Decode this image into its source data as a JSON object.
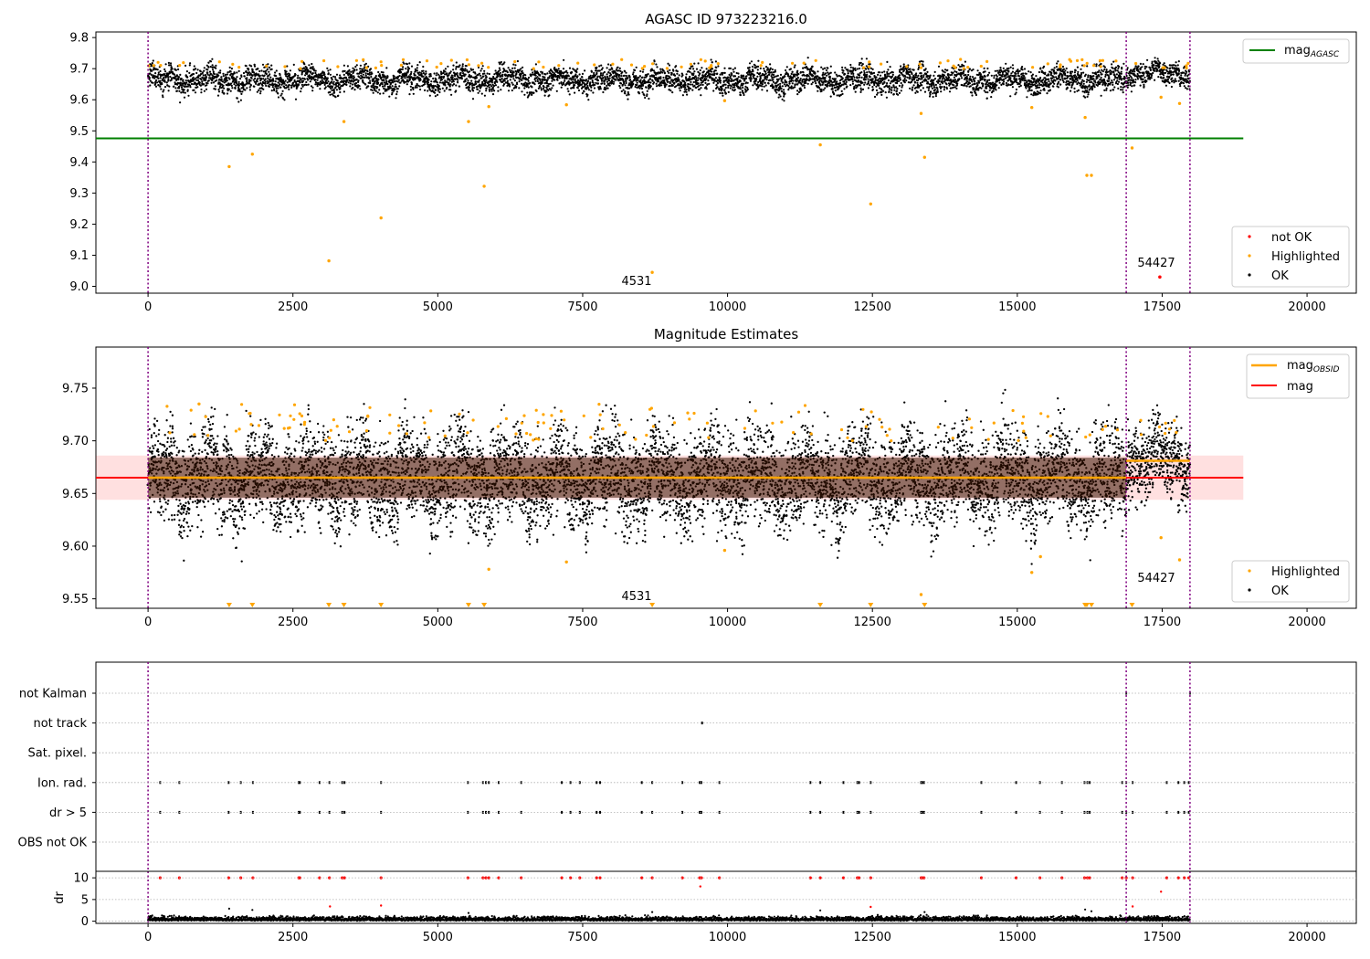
{
  "chart_data": [
    {
      "type": "scatter",
      "title": "AGASC ID 973223216.0",
      "xlabel": "",
      "ylabel": "",
      "xlim": [
        -900,
        20850
      ],
      "ylim": [
        8.978,
        9.818
      ],
      "x_ticks": [
        0,
        2500,
        5000,
        7500,
        10000,
        12500,
        15000,
        17500,
        20000
      ],
      "x_tick_labels": [
        "0",
        "2500",
        "5000",
        "7500",
        "10000",
        "12500",
        "15000",
        "17500",
        "20000"
      ],
      "y_ticks": [
        9.0,
        9.1,
        9.2,
        9.3,
        9.4,
        9.5,
        9.6,
        9.7,
        9.8
      ],
      "y_tick_labels": [
        "9.0",
        "9.1",
        "9.2",
        "9.3",
        "9.4",
        "9.5",
        "9.6",
        "9.7",
        "9.8"
      ],
      "grid": false,
      "vlines": [
        0,
        16880,
        17980
      ],
      "hline": {
        "name": "mag_AGASC",
        "y": 9.476,
        "x_range": [
          -900,
          18900
        ],
        "color": "#008000"
      },
      "series": [
        {
          "name": "OK",
          "color": "#000000",
          "segments": [
            {
              "x_range": [
                0,
                16880
              ],
              "y_center": 9.665,
              "y_spread": 0.045
            },
            {
              "x_range": [
                16880,
                17980
              ],
              "y_center": 9.685,
              "y_spread": 0.04
            }
          ]
        },
        {
          "name": "Highlighted",
          "color": "#ffa500",
          "points": [
            [
              1400,
              9.385
            ],
            [
              1800,
              9.425
            ],
            [
              3120,
              9.082
            ],
            [
              3380,
              9.53
            ],
            [
              4020,
              9.22
            ],
            [
              5530,
              9.53
            ],
            [
              5800,
              9.322
            ],
            [
              5880,
              9.578
            ],
            [
              7220,
              9.584
            ],
            [
              8700,
              9.045
            ],
            [
              9950,
              9.597
            ],
            [
              11600,
              9.455
            ],
            [
              12470,
              9.265
            ],
            [
              13340,
              9.556
            ],
            [
              13400,
              9.415
            ],
            [
              15250,
              9.575
            ],
            [
              16170,
              9.543
            ],
            [
              16200,
              9.357
            ],
            [
              16280,
              9.357
            ],
            [
              16980,
              9.445
            ],
            [
              17480,
              9.608
            ],
            [
              17800,
              9.588
            ]
          ]
        },
        {
          "name": "not OK",
          "color": "#ff0000",
          "points": [
            [
              17460,
              9.03
            ]
          ]
        }
      ],
      "annotations": [
        {
          "text": "4531",
          "x": 8450,
          "y": 9.012
        },
        {
          "text": "54427",
          "x": 17430,
          "y": 9.07
        }
      ],
      "legends": [
        {
          "position": "top-right",
          "entries": [
            {
              "label": "mag",
              "sub": "AGASC",
              "color": "#008000",
              "kind": "line"
            }
          ]
        },
        {
          "position": "bottom-right",
          "entries": [
            {
              "label": "not OK",
              "color": "#ff0000",
              "kind": "dot"
            },
            {
              "label": "Highlighted",
              "color": "#ffa500",
              "kind": "dot"
            },
            {
              "label": "OK",
              "color": "#000000",
              "kind": "dot"
            }
          ]
        }
      ]
    },
    {
      "type": "scatter",
      "title": "Magnitude Estimates",
      "xlabel": "",
      "ylabel": "",
      "xlim": [
        -900,
        20850
      ],
      "ylim": [
        9.541,
        9.789
      ],
      "x_ticks": [
        0,
        2500,
        5000,
        7500,
        10000,
        12500,
        15000,
        17500,
        20000
      ],
      "x_tick_labels": [
        "0",
        "2500",
        "5000",
        "7500",
        "10000",
        "12500",
        "15000",
        "17500",
        "20000"
      ],
      "y_ticks": [
        9.55,
        9.6,
        9.65,
        9.7,
        9.75
      ],
      "y_tick_labels": [
        "9.55",
        "9.60",
        "9.65",
        "9.70",
        "9.75"
      ],
      "grid": false,
      "vlines": [
        0,
        16880,
        17980
      ],
      "band": {
        "y_range": [
          9.644,
          9.686
        ],
        "x_range": [
          -900,
          18900
        ],
        "color": "#ff0000",
        "opacity": 0.12
      },
      "hlines": [
        {
          "name": "mag",
          "y": 9.665,
          "x_range": [
            -900,
            18900
          ],
          "color": "#ff0000"
        },
        {
          "name": "mag_OBSID",
          "segments": [
            {
              "x_range": [
                0,
                16880
              ],
              "y": 9.665
            },
            {
              "x_range": [
                16880,
                17980
              ],
              "y": 9.681
            }
          ],
          "color": "#ffa500"
        }
      ],
      "series": [
        {
          "name": "OK",
          "color": "#000000",
          "segments": [
            {
              "x_range": [
                0,
                16880
              ],
              "y_center": 9.665,
              "y_spread": 0.05
            },
            {
              "x_range": [
                16880,
                17980
              ],
              "y_center": 9.681,
              "y_spread": 0.04
            }
          ]
        },
        {
          "name": "Highlighted",
          "color": "#ffa500",
          "points": [
            [
              880,
              9.735
            ],
            [
              5880,
              9.578
            ],
            [
              7220,
              9.585
            ],
            [
              9950,
              9.596
            ],
            [
              13340,
              9.554
            ],
            [
              15250,
              9.575
            ],
            [
              15400,
              9.59
            ],
            [
              17480,
              9.608
            ],
            [
              17800,
              9.587
            ]
          ]
        },
        {
          "name": "Highlighted (off-scale)",
          "color": "#ffa500",
          "marker": "triangle-down",
          "x": [
            1400,
            1800,
            3120,
            3380,
            4020,
            5530,
            5800,
            8700,
            11600,
            12470,
            13400,
            16170,
            16200,
            16280,
            16980
          ]
        }
      ],
      "annotations": [
        {
          "text": "4531",
          "x": 8450,
          "y": 9.55
        },
        {
          "text": "54427",
          "x": 17430,
          "y": 9.568
        }
      ],
      "legends": [
        {
          "position": "top-right",
          "entries": [
            {
              "label": "mag",
              "sub": "OBSID",
              "color": "#ffa500",
              "kind": "line"
            },
            {
              "label": "mag",
              "sub": "",
              "color": "#ff0000",
              "kind": "line"
            }
          ]
        },
        {
          "position": "bottom-right",
          "entries": [
            {
              "label": "Highlighted",
              "color": "#ffa500",
              "kind": "dot"
            },
            {
              "label": "OK",
              "color": "#000000",
              "kind": "dot"
            }
          ]
        }
      ]
    },
    {
      "type": "scatter",
      "title": "",
      "xlabel": "",
      "ylabel": "",
      "xlim": [
        -900,
        20850
      ],
      "categories": [
        "not Kalman",
        "not track",
        "Sat. pixel.",
        "Ion. rad.",
        "dr > 5",
        "OBS not OK"
      ],
      "grid": true,
      "vlines": [
        0,
        16880,
        17980
      ],
      "flags": [
        {
          "category": "not Kalman",
          "x": [
            16880,
            17980
          ]
        },
        {
          "category": "not track",
          "x": [
            9560
          ]
        },
        {
          "category": "Sat. pixel.",
          "x": []
        },
        {
          "category": "Ion. rad.",
          "x": [
            210,
            540,
            1390,
            1600,
            1810,
            2600,
            2620,
            2960,
            3130,
            3350,
            3390,
            4020,
            5520,
            5780,
            5830,
            5880,
            6050,
            6440,
            7140,
            7290,
            7450,
            7740,
            7800,
            8520,
            8700,
            9220,
            9520,
            9550,
            9860,
            11430,
            11600,
            12000,
            12240,
            12270,
            12470,
            13340,
            13360,
            13390,
            14380,
            14980,
            15390,
            15770,
            16160,
            16210,
            16250,
            16810,
            16880,
            16990,
            17580,
            17780,
            17880,
            17960
          ]
        },
        {
          "category": "dr > 5",
          "x": [
            210,
            540,
            1390,
            1600,
            1810,
            2600,
            2620,
            2960,
            3130,
            3350,
            3390,
            4020,
            5520,
            5780,
            5830,
            5880,
            6050,
            6440,
            7140,
            7290,
            7450,
            7740,
            7800,
            8520,
            8700,
            9220,
            9520,
            9550,
            9860,
            11430,
            11600,
            12000,
            12240,
            12270,
            12470,
            13340,
            13360,
            13390,
            14380,
            14980,
            15390,
            15770,
            16160,
            16210,
            16250,
            16810,
            16880,
            16990,
            17580,
            17780,
            17880,
            17960
          ]
        },
        {
          "category": "OBS not OK",
          "x": []
        }
      ]
    },
    {
      "type": "scatter",
      "title": "",
      "xlabel": "",
      "ylabel": "dr",
      "xlim": [
        -900,
        20850
      ],
      "ylim": [
        -0.5,
        11.5
      ],
      "x_ticks": [
        0,
        2500,
        5000,
        7500,
        10000,
        12500,
        15000,
        17500,
        20000
      ],
      "x_tick_labels": [
        "0",
        "2500",
        "5000",
        "7500",
        "10000",
        "12500",
        "15000",
        "17500",
        "20000"
      ],
      "y_ticks": [
        0,
        5,
        10
      ],
      "y_tick_labels": [
        "0",
        "5",
        "10"
      ],
      "grid": true,
      "vlines": [
        0,
        16880,
        17980
      ],
      "series": [
        {
          "name": "OK",
          "color": "#000000",
          "segments": [
            {
              "x_range": [
                0,
                17980
              ],
              "y_center": 0.5,
              "y_spread": 0.6
            }
          ],
          "points": [
            [
              1400,
              2.9
            ],
            [
              1800,
              2.6
            ],
            [
              5530,
              1.9
            ],
            [
              8700,
              2.1
            ],
            [
              11600,
              2.5
            ],
            [
              13400,
              2.1
            ],
            [
              16170,
              2.7
            ],
            [
              16280,
              2.3
            ]
          ]
        },
        {
          "name": "dr > 5",
          "color": "#ff0000",
          "x_at_10": [
            210,
            540,
            1390,
            1600,
            1810,
            2600,
            2620,
            2960,
            3130,
            3350,
            3390,
            4020,
            5520,
            5780,
            5830,
            5880,
            6050,
            6440,
            7140,
            7290,
            7450,
            7740,
            7800,
            8520,
            8700,
            9220,
            9520,
            9550,
            9860,
            11430,
            11600,
            12000,
            12240,
            12270,
            12470,
            13340,
            13360,
            13390,
            14380,
            14980,
            15390,
            15770,
            16160,
            16210,
            16250,
            16810,
            16880,
            16990,
            17580,
            17780,
            17880,
            17960
          ],
          "points": [
            [
              3140,
              3.4
            ],
            [
              4020,
              3.6
            ],
            [
              9530,
              8.0
            ],
            [
              12470,
              3.3
            ],
            [
              16990,
              3.4
            ],
            [
              17480,
              6.8
            ]
          ]
        }
      ]
    }
  ]
}
